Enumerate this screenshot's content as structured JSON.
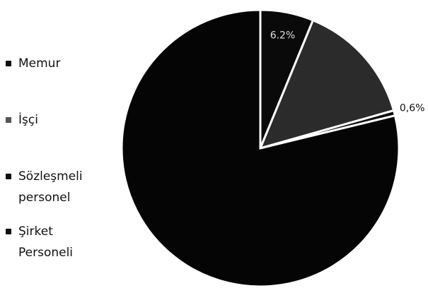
{
  "chart_data": {
    "type": "pie",
    "categories": [
      "Memur",
      "İşçi",
      "Sözleşmeli personel",
      "Şirket Personeli"
    ],
    "values": [
      6.2,
      14.4,
      0.6,
      78.8
    ],
    "value_labels": [
      "6.2%",
      null,
      "0,6%",
      null
    ],
    "colors": [
      "#0a0a0a",
      "#2b2b2b",
      "#0a0a0a",
      "#050505"
    ],
    "legend": "left"
  }
}
